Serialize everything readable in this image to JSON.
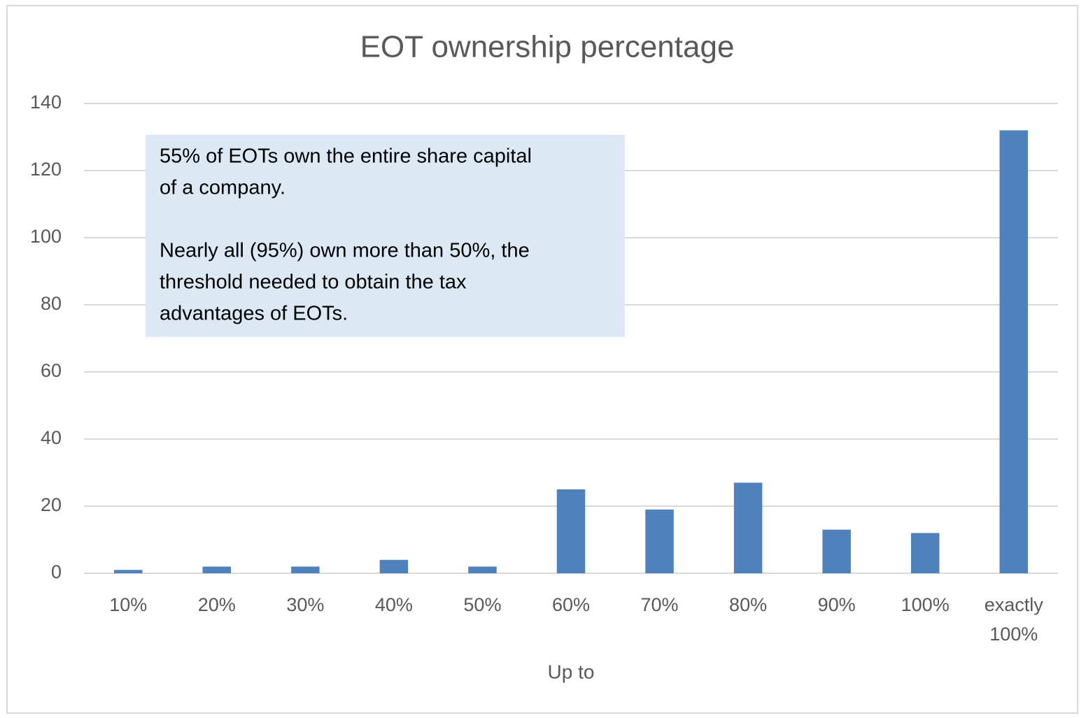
{
  "chart_data": {
    "type": "bar",
    "title": "EOT ownership percentage",
    "x_label": "Up to",
    "categories": [
      "10%",
      "20%",
      "30%",
      "40%",
      "50%",
      "60%",
      "70%",
      "80%",
      "90%",
      "100%",
      "exactly 100%"
    ],
    "values": [
      1,
      2,
      2,
      4,
      2,
      25,
      19,
      27,
      13,
      12,
      132
    ],
    "color": "#4f81bd",
    "ylim": [
      0,
      140
    ],
    "yticks": [
      0,
      20,
      40,
      60,
      80,
      100,
      120,
      140
    ],
    "grid": true,
    "annotation": [
      [
        "55% of EOTs own the entire share capital",
        "of a company."
      ],
      [
        "Nearly all (95%) own more than 50%, the",
        "threshold needed to obtain the tax",
        "advantages of EOTs."
      ]
    ]
  }
}
